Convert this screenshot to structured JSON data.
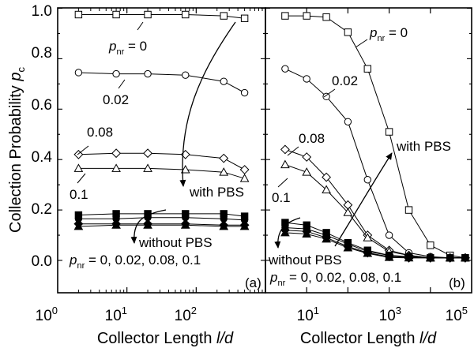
{
  "chart_data": [
    {
      "panel": "a",
      "type": "line",
      "x_scale": "log",
      "xlim": [
        1,
        1000
      ],
      "ylim": [
        0,
        1.0
      ],
      "xlabel": "Collector Length l/d",
      "ylabel": "Collection Probability p_c",
      "x_tick_labels": [
        "10^0",
        "10^1",
        "10^2"
      ],
      "y_tick_labels": [
        "0.0",
        "0.2",
        "0.4",
        "0.6",
        "0.8",
        "1.0"
      ],
      "panel_label": "(a)",
      "series": [
        {
          "name": "with PBS p_nr = 0",
          "marker": "square-open",
          "x": [
            2,
            7,
            20,
            70,
            250,
            500
          ],
          "y": [
            0.975,
            0.975,
            0.975,
            0.975,
            0.97,
            0.96
          ]
        },
        {
          "name": "with PBS p_nr = 0.02",
          "marker": "circle-open",
          "x": [
            2,
            7,
            20,
            70,
            250,
            500
          ],
          "y": [
            0.745,
            0.74,
            0.74,
            0.735,
            0.71,
            0.665
          ]
        },
        {
          "name": "with PBS p_nr = 0.08",
          "marker": "diamond-open",
          "x": [
            2,
            7,
            20,
            70,
            250,
            500
          ],
          "y": [
            0.42,
            0.425,
            0.425,
            0.42,
            0.405,
            0.36
          ]
        },
        {
          "name": "with PBS p_nr = 0.1",
          "marker": "triangle-open",
          "x": [
            2,
            7,
            20,
            70,
            250,
            500
          ],
          "y": [
            0.365,
            0.365,
            0.365,
            0.36,
            0.35,
            0.325
          ]
        },
        {
          "name": "without PBS p_nr = 0",
          "marker": "square-filled",
          "x": [
            2,
            7,
            20,
            70,
            250,
            500
          ],
          "y": [
            0.18,
            0.185,
            0.185,
            0.185,
            0.185,
            0.175
          ]
        },
        {
          "name": "without PBS p_nr = 0.02",
          "marker": "circle-filled",
          "x": [
            2,
            7,
            20,
            70,
            250,
            500
          ],
          "y": [
            0.165,
            0.165,
            0.17,
            0.17,
            0.165,
            0.16
          ]
        },
        {
          "name": "without PBS p_nr = 0.08",
          "marker": "diamond-filled",
          "x": [
            2,
            7,
            20,
            70,
            250,
            500
          ],
          "y": [
            0.145,
            0.145,
            0.145,
            0.145,
            0.14,
            0.14
          ]
        },
        {
          "name": "without PBS p_nr = 0.1",
          "marker": "triangle-filled",
          "x": [
            2,
            7,
            20,
            70,
            250,
            500
          ],
          "y": [
            0.135,
            0.14,
            0.14,
            0.14,
            0.135,
            0.135
          ]
        }
      ]
    },
    {
      "panel": "b",
      "type": "line",
      "x_scale": "log",
      "xlim": [
        1,
        100000
      ],
      "ylim": [
        0,
        1.0
      ],
      "xlabel": "Collector Length l/d",
      "ylabel": "Collection Probability p_c",
      "x_tick_labels": [
        "10^1",
        "10^3",
        "10^5"
      ],
      "y_tick_labels": [
        "0.0",
        "0.2",
        "0.4",
        "0.6",
        "0.8",
        "1.0"
      ],
      "panel_label": "(b)",
      "series": [
        {
          "name": "with PBS p_nr = 0",
          "marker": "square-open",
          "x": [
            3,
            10,
            30,
            100,
            300,
            1000,
            3000,
            10000,
            30000,
            70000
          ],
          "y": [
            0.97,
            0.97,
            0.965,
            0.905,
            0.76,
            0.51,
            0.2,
            0.06,
            0.02,
            0.01
          ]
        },
        {
          "name": "with PBS p_nr = 0.02",
          "marker": "circle-open",
          "x": [
            3,
            10,
            30,
            100,
            300,
            1000,
            3000,
            10000,
            30000,
            70000
          ],
          "y": [
            0.76,
            0.72,
            0.65,
            0.55,
            0.32,
            0.1,
            0.03,
            0.015,
            0.01,
            0.01
          ]
        },
        {
          "name": "with PBS p_nr = 0.08",
          "marker": "diamond-open",
          "x": [
            3,
            10,
            30,
            100,
            300,
            1000,
            3000,
            10000,
            30000,
            70000
          ],
          "y": [
            0.44,
            0.41,
            0.33,
            0.22,
            0.1,
            0.04,
            0.02,
            0.01,
            0.01,
            0.01
          ]
        },
        {
          "name": "with PBS p_nr = 0.1",
          "marker": "triangle-open",
          "x": [
            3,
            10,
            30,
            100,
            300,
            1000,
            3000,
            10000,
            30000,
            70000
          ],
          "y": [
            0.38,
            0.35,
            0.28,
            0.19,
            0.09,
            0.035,
            0.02,
            0.01,
            0.01,
            0.01
          ]
        },
        {
          "name": "without PBS p_nr = 0",
          "marker": "square-filled",
          "x": [
            3,
            10,
            30,
            100,
            300,
            1000,
            3000,
            10000,
            30000,
            70000
          ],
          "y": [
            0.15,
            0.14,
            0.11,
            0.07,
            0.04,
            0.02,
            0.015,
            0.01,
            0.01,
            0.01
          ]
        },
        {
          "name": "without PBS p_nr = 0.02",
          "marker": "circle-filled",
          "x": [
            3,
            10,
            30,
            100,
            300,
            1000,
            3000,
            10000,
            30000,
            70000
          ],
          "y": [
            0.13,
            0.125,
            0.1,
            0.065,
            0.035,
            0.02,
            0.012,
            0.01,
            0.01,
            0.01
          ]
        },
        {
          "name": "without PBS p_nr = 0.08",
          "marker": "diamond-filled",
          "x": [
            3,
            10,
            30,
            100,
            300,
            1000,
            3000,
            10000,
            30000,
            70000
          ],
          "y": [
            0.12,
            0.115,
            0.09,
            0.055,
            0.03,
            0.015,
            0.01,
            0.01,
            0.01,
            0.01
          ]
        },
        {
          "name": "without PBS p_nr = 0.1",
          "marker": "triangle-filled",
          "x": [
            3,
            10,
            30,
            100,
            300,
            1000,
            3000,
            10000,
            30000,
            70000
          ],
          "y": [
            0.11,
            0.105,
            0.085,
            0.05,
            0.028,
            0.012,
            0.01,
            0.01,
            0.01,
            0.01
          ]
        }
      ]
    }
  ],
  "annotations": {
    "a": {
      "pnr_zero": "p_nr = 0",
      "val_002": "0.02",
      "val_008": "0.08",
      "val_01": "0.1",
      "with_pbs": "with PBS",
      "without_pbs": "without PBS",
      "pnr_list": "p_nr = 0, 0.02, 0.08, 0.1"
    },
    "b": {
      "pnr_zero": "p_nr = 0",
      "val_002": "0.02",
      "val_008": "0.08",
      "val_01": "0.1",
      "with_pbs": "with PBS",
      "without_pbs": "without PBS",
      "pnr_list": "p_nr = 0, 0.02, 0.08, 0.1"
    }
  },
  "text": {
    "ylabel_main": "Collection Probability ",
    "ylabel_var": "p",
    "ylabel_sub": "c",
    "xlabel_a_main": "Collector Length ",
    "xlabel_a_var": "l/d",
    "xlabel_b_main": "Collector Length ",
    "xlabel_b_var": "l/d",
    "p": "p",
    "nr": "nr",
    "eq_zero": " = 0",
    "eq_list": " = 0, 0.02, 0.08, 0.1",
    "base10": "10",
    "exp_a": [
      "0",
      "1",
      "2"
    ],
    "exp_b": [
      "1",
      "3",
      "5"
    ],
    "y_ticks": [
      "0.0",
      "0.2",
      "0.4",
      "0.6",
      "0.8",
      "1.0"
    ]
  }
}
